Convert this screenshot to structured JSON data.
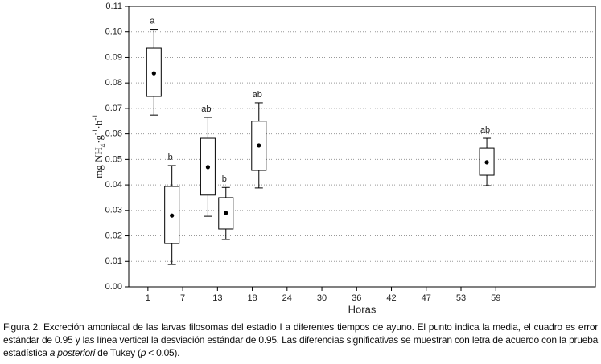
{
  "chart_data": {
    "type": "box",
    "xlabel": "Horas",
    "ylabel": [
      {
        "text": "mg NH"
      },
      {
        "text": "4",
        "sub": true
      },
      {
        "text": "·g"
      },
      {
        "text": "-1",
        "sup": true
      },
      {
        "text": "·h"
      },
      {
        "text": "-1",
        "sup": true
      }
    ],
    "xlim": [
      -2.2,
      75.6
    ],
    "xticks": [
      1,
      {
        "value": 6.8,
        "label": "7"
      },
      {
        "value": 12.6,
        "label": "13"
      },
      {
        "value": 18.4,
        "label": "18"
      },
      {
        "value": 24.2,
        "label": "24"
      },
      30,
      {
        "value": 35.8,
        "label": "36"
      },
      {
        "value": 41.6,
        "label": "42"
      },
      {
        "value": 47.4,
        "label": "47"
      },
      {
        "value": 53.2,
        "label": "53"
      },
      59
    ],
    "ylim": [
      0,
      0.11
    ],
    "yticks": [
      {
        "value": 0,
        "label": "0.00"
      },
      {
        "value": 0.01,
        "label": "0.01"
      },
      {
        "value": 0.02,
        "label": "0.02"
      },
      {
        "value": 0.03,
        "label": "0.03"
      },
      {
        "value": 0.04,
        "label": "0.04"
      },
      {
        "value": 0.05,
        "label": "0.05"
      },
      {
        "value": 0.06,
        "label": "0.06"
      },
      {
        "value": 0.07,
        "label": "0.07"
      },
      {
        "value": 0.08,
        "label": "0.08"
      },
      {
        "value": 0.09,
        "label": "0.09"
      },
      {
        "value": 0.1,
        "label": "0.10"
      },
      {
        "value": 0.11,
        "label": "0.11"
      }
    ],
    "grid": true,
    "color": "#000000",
    "boxes": [
      {
        "x": 2,
        "whisker_high": 0.101,
        "q3": 0.0936,
        "mean": 0.0838,
        "q1": 0.0747,
        "whisker_low": 0.0674,
        "label": "a"
      },
      {
        "x": 5,
        "whisker_high": 0.0476,
        "q3": 0.0394,
        "mean": 0.028,
        "q1": 0.017,
        "whisker_low": 0.0088,
        "label": "b"
      },
      {
        "x": 11,
        "whisker_high": 0.0665,
        "q3": 0.0583,
        "mean": 0.047,
        "q1": 0.036,
        "whisker_low": 0.0277,
        "label": "ab"
      },
      {
        "x": 14,
        "whisker_high": 0.039,
        "q3": 0.035,
        "mean": 0.029,
        "q1": 0.0227,
        "whisker_low": 0.0186,
        "label": "b"
      },
      {
        "x": 19.5,
        "whisker_high": 0.0722,
        "q3": 0.065,
        "mean": 0.0555,
        "q1": 0.0457,
        "whisker_low": 0.0388,
        "label": "ab"
      },
      {
        "x": 57.5,
        "whisker_high": 0.0583,
        "q3": 0.0545,
        "mean": 0.0489,
        "q1": 0.0438,
        "whisker_low": 0.0397,
        "label": "ab"
      }
    ],
    "caption": [
      {
        "text": "Figura 2. Excreción amoniacal de las larvas filosomas del estadio I a diferentes tiempos de ayuno. El punto indica la media, el cuadro es error estándar de 0.95 y las línea vertical la desviación estándar de 0.95. Las diferencias significativas se muestran con letra de acuerdo con la prueba estadística "
      },
      {
        "text": "a posteriori",
        "italic": true
      },
      {
        "text": " de Tukey ("
      },
      {
        "text": "p",
        "italic": true
      },
      {
        "text": " < 0.05)."
      }
    ]
  }
}
